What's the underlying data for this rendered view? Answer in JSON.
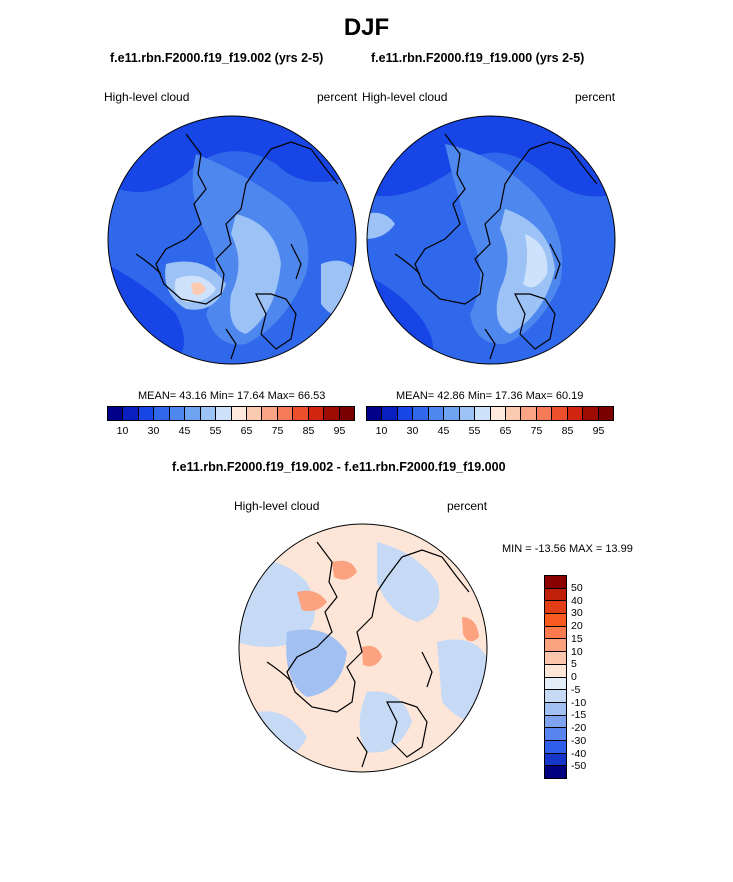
{
  "figure_title": "DJF",
  "panels": [
    {
      "title": "f.e11.rbn.F2000.f19_f19.002 (yrs 2-5)",
      "variable": "High-level cloud",
      "units": "percent",
      "stats": {
        "mean": "43.16",
        "min": "17.64",
        "max": "66.53",
        "text": "MEAN=  43.16  Min=  17.64  Max=  66.53"
      }
    },
    {
      "title": "f.e11.rbn.F2000.f19_f19.000 (yrs 2-5)",
      "variable": "High-level cloud",
      "units": "percent",
      "stats": {
        "mean": "42.86",
        "min": "17.36",
        "max": "60.19",
        "text": "MEAN=  42.86  Min=  17.36  Max=  60.19"
      }
    },
    {
      "title": "f.e11.rbn.F2000.f19_f19.002 - f.e11.rbn.F2000.f19_f19.000",
      "variable": "High-level cloud",
      "units": "percent",
      "stats": {
        "min": "-13.56",
        "max": "13.99",
        "text": "MIN = -13.56 MAX =  13.99"
      }
    }
  ],
  "colorbar_abs": {
    "colors": [
      "#00008b",
      "#0a1fbf",
      "#1846e6",
      "#2f68ea",
      "#4e87ee",
      "#6ea4f2",
      "#9cc2f6",
      "#cfe2fb",
      "#ffe8dc",
      "#fcc9b1",
      "#f9a585",
      "#f57a57",
      "#ec4f2c",
      "#d2250f",
      "#9e0c04",
      "#7a0000"
    ],
    "tick_labels": [
      "10",
      "30",
      "45",
      "55",
      "65",
      "75",
      "85",
      "95"
    ]
  },
  "colorbar_diff": {
    "colors": [
      "#8b0000",
      "#c0200a",
      "#e23e15",
      "#f95a22",
      "#fb7b4e",
      "#fca27e",
      "#fdc6ac",
      "#fde6d8",
      "#e3eef9",
      "#c6d9f5",
      "#a3c0f2",
      "#7fa3ef",
      "#5784ee",
      "#2f5fea",
      "#1536c8",
      "#000080"
    ],
    "tick_labels": [
      "50",
      "40",
      "30",
      "20",
      "15",
      "10",
      "5",
      "0",
      "-5",
      "-10",
      "-15",
      "-20",
      "-30",
      "-40",
      "-50"
    ]
  },
  "map_colors": {
    "abs_base": "#2f68ea",
    "abs_dark": "#1846e6",
    "abs_mid": "#4e87ee",
    "abs_light": "#9cc2f6",
    "abs_pale": "#cfe2fb",
    "abs_warm": "#fcc9b1",
    "diff_base": "#fde6d8",
    "diff_blue": "#c6d9f5",
    "diff_blue2": "#a3c0f2",
    "diff_warm": "#fca27e",
    "coast": "#000000"
  }
}
